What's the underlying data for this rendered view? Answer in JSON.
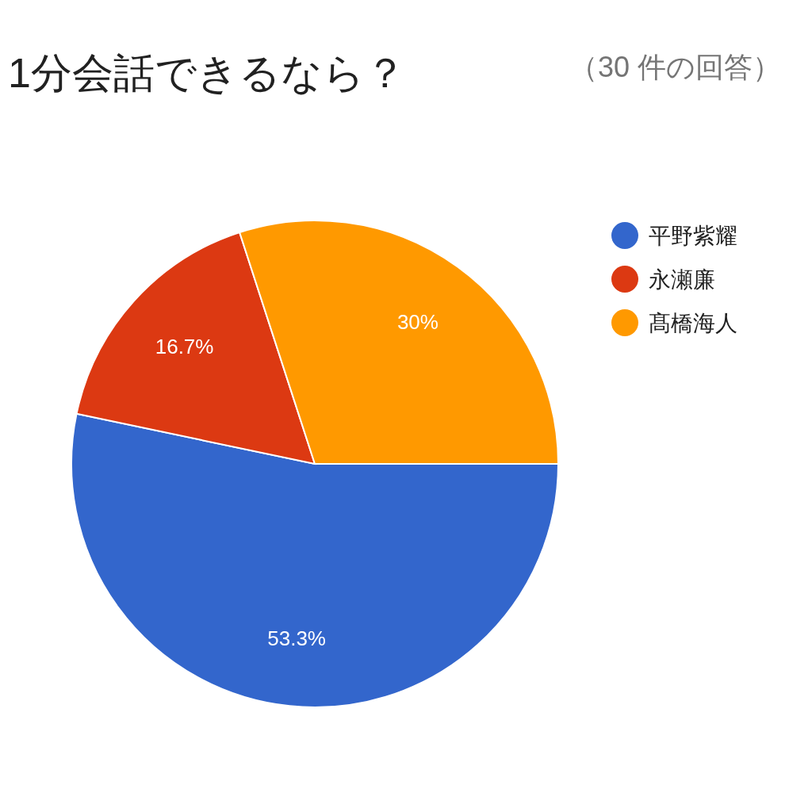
{
  "chart_data": {
    "type": "pie",
    "title": "1分会話できるなら？",
    "subtitle": "（30 件の回答）",
    "categories": [
      "平野紫耀",
      "永瀬廉",
      "髙橋海人"
    ],
    "values": [
      53.3,
      16.7,
      30
    ],
    "colors": [
      "#3366cc",
      "#dc3912",
      "#ff9900"
    ],
    "value_labels": [
      "53.3%",
      "16.7%",
      "30%"
    ],
    "legend": "right"
  }
}
